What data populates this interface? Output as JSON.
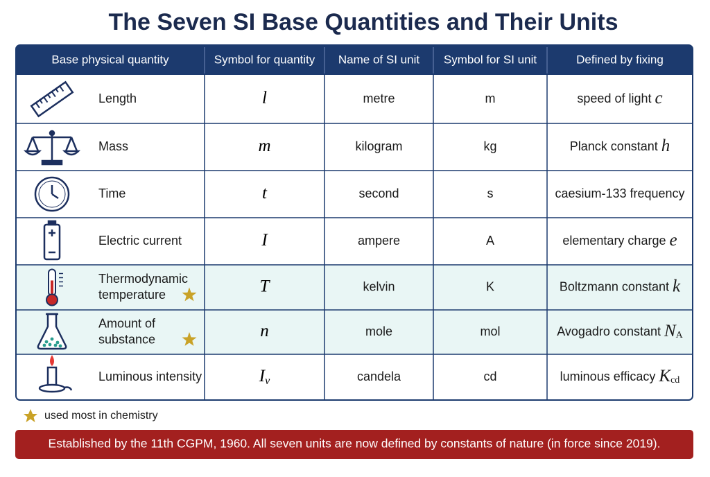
{
  "header": {
    "title": "The Seven SI Base Quantities and Their Units"
  },
  "table": {
    "headers": [
      "Base physical quantity",
      "Symbol for quantity",
      "Name of SI unit",
      "Symbol for SI unit",
      "Defined by fixing"
    ],
    "rows": [
      {
        "quantity": [
          "Length"
        ],
        "symbol": {
          "base": "l"
        },
        "unit": "metre",
        "unit_symbol": "m",
        "defined_by": {
          "text": "speed of light",
          "symbol": "c"
        },
        "chemistry": false
      },
      {
        "quantity": [
          "Mass"
        ],
        "symbol": {
          "base": "m"
        },
        "unit": "kilogram",
        "unit_symbol": "kg",
        "defined_by": {
          "text": "Planck constant",
          "symbol": "h"
        },
        "chemistry": false
      },
      {
        "quantity": [
          "Time"
        ],
        "symbol": {
          "base": "t"
        },
        "unit": "second",
        "unit_symbol": "s",
        "defined_by": {
          "text": "caesium-133 frequency"
        },
        "chemistry": false
      },
      {
        "quantity": [
          "Electric current"
        ],
        "symbol": {
          "base": "I"
        },
        "unit": "ampere",
        "unit_symbol": "A",
        "defined_by": {
          "text": "elementary charge",
          "symbol": "e"
        },
        "chemistry": false
      },
      {
        "quantity": [
          "Thermodynamic",
          "temperature"
        ],
        "symbol": {
          "base": "T"
        },
        "unit": "kelvin",
        "unit_symbol": "K",
        "defined_by": {
          "text": "Boltzmann constant",
          "symbol": "k"
        },
        "chemistry": true
      },
      {
        "quantity": [
          "Amount of",
          "substance"
        ],
        "symbol": {
          "base": "n"
        },
        "unit": "mole",
        "unit_symbol": "mol",
        "defined_by": {
          "text": "Avogadro constant",
          "symbol": "N",
          "sub": "A"
        },
        "chemistry": true
      },
      {
        "quantity": [
          "Luminous intensity"
        ],
        "symbol": {
          "base": "I",
          "sub": "v"
        },
        "unit": "candela",
        "unit_symbol": "cd",
        "defined_by": {
          "text": "luminous efficacy",
          "symbol": "K",
          "sub": "cd"
        },
        "chemistry": false
      }
    ]
  },
  "legend": {
    "chemistry": "used most in chemistry"
  },
  "footer": {
    "note": "Established by the 11th CGPM, 1960. All seven units are now defined by constants of nature (in force since 2019)."
  }
}
